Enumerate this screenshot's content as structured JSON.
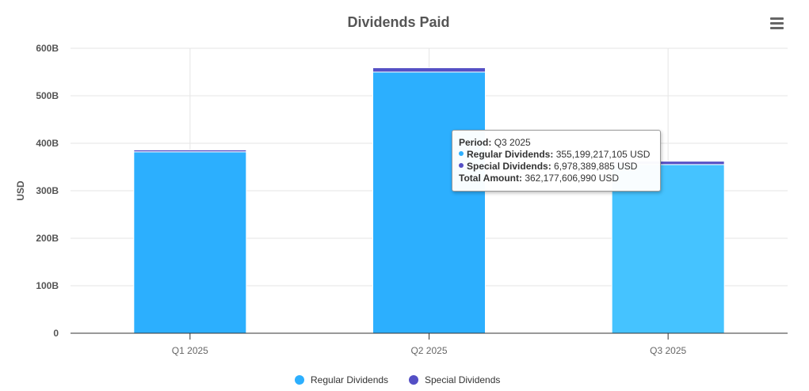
{
  "chart_data": {
    "type": "bar",
    "stacked": true,
    "title": "Dividends Paid",
    "xlabel": "",
    "ylabel": "USD",
    "ylim": [
      0,
      600000000000
    ],
    "y_ticks": [
      "0",
      "100B",
      "200B",
      "300B",
      "400B",
      "500B",
      "600B"
    ],
    "categories": [
      "Q1 2025",
      "Q2 2025",
      "Q3 2025"
    ],
    "series": [
      {
        "name": "Regular Dividends",
        "color": "#2caffe",
        "values": [
          382000000000,
          550000000000,
          355199217105
        ]
      },
      {
        "name": "Special Dividends",
        "color": "#544fc5",
        "values": [
          4000000000,
          9000000000,
          6978389885
        ]
      }
    ],
    "grid": true,
    "legend_position": "bottom-center",
    "highlighted_category": "Q3 2025"
  },
  "tooltip": {
    "period_label": "Period:",
    "period_value": "Q3 2025",
    "regular_label": "Regular Dividends:",
    "regular_value": "355,199,217,105 USD",
    "special_label": "Special Dividends:",
    "special_value": "6,978,389,885 USD",
    "total_label": "Total Amount:",
    "total_value": "362,177,606,990 USD"
  },
  "colors": {
    "regular": "#2caffe",
    "regular_hover": "#45c3ff",
    "special": "#544fc5"
  },
  "menu": {
    "icon": "hamburger-menu-icon"
  }
}
